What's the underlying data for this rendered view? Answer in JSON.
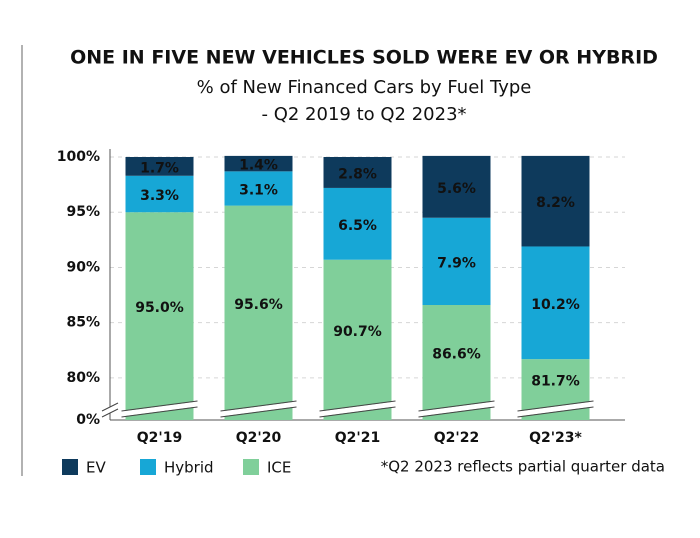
{
  "chart_data": {
    "type": "stacked_bar",
    "title": "ONE IN FIVE NEW VEHICLES SOLD WERE EV OR HYBRID",
    "subtitle": [
      "% of New Financed Cars by Fuel Type",
      "- Q2 2019 to Q2 2023*"
    ],
    "categories": [
      "Q2'19",
      "Q2'20",
      "Q2'21",
      "Q2'22",
      "Q2'23*"
    ],
    "series": [
      {
        "name": "ICE",
        "color": "#80cf9a",
        "values": [
          95.0,
          95.6,
          90.7,
          86.6,
          81.7
        ],
        "value_labels": [
          "95.0%",
          "95.6%",
          "90.7%",
          "86.6%",
          "81.7%"
        ]
      },
      {
        "name": "Hybrid",
        "color": "#17a7d6",
        "values": [
          3.3,
          3.1,
          6.5,
          7.9,
          10.2
        ],
        "value_labels": [
          "3.3%",
          "3.1%",
          "6.5%",
          "7.9%",
          "10.2%"
        ]
      },
      {
        "name": "EV",
        "color": "#0e3a5c",
        "values": [
          1.7,
          1.4,
          2.8,
          5.6,
          8.2
        ],
        "value_labels": [
          "1.7%",
          "1.4%",
          "2.8%",
          "5.6%",
          "8.2%"
        ]
      }
    ],
    "legend_order": [
      "EV",
      "Hybrid",
      "ICE"
    ],
    "ylim": [
      0,
      100
    ],
    "ybreak": [
      0,
      78
    ],
    "yticks": [
      {
        "value": 0,
        "label": "0%"
      },
      {
        "value": 80,
        "label": "80%"
      },
      {
        "value": 85,
        "label": "85%"
      },
      {
        "value": 90,
        "label": "90%"
      },
      {
        "value": 95,
        "label": "95%"
      },
      {
        "value": 100,
        "label": "100%"
      }
    ],
    "grid": true,
    "footnote": "*Q2 2023 reflects partial quarter data"
  }
}
